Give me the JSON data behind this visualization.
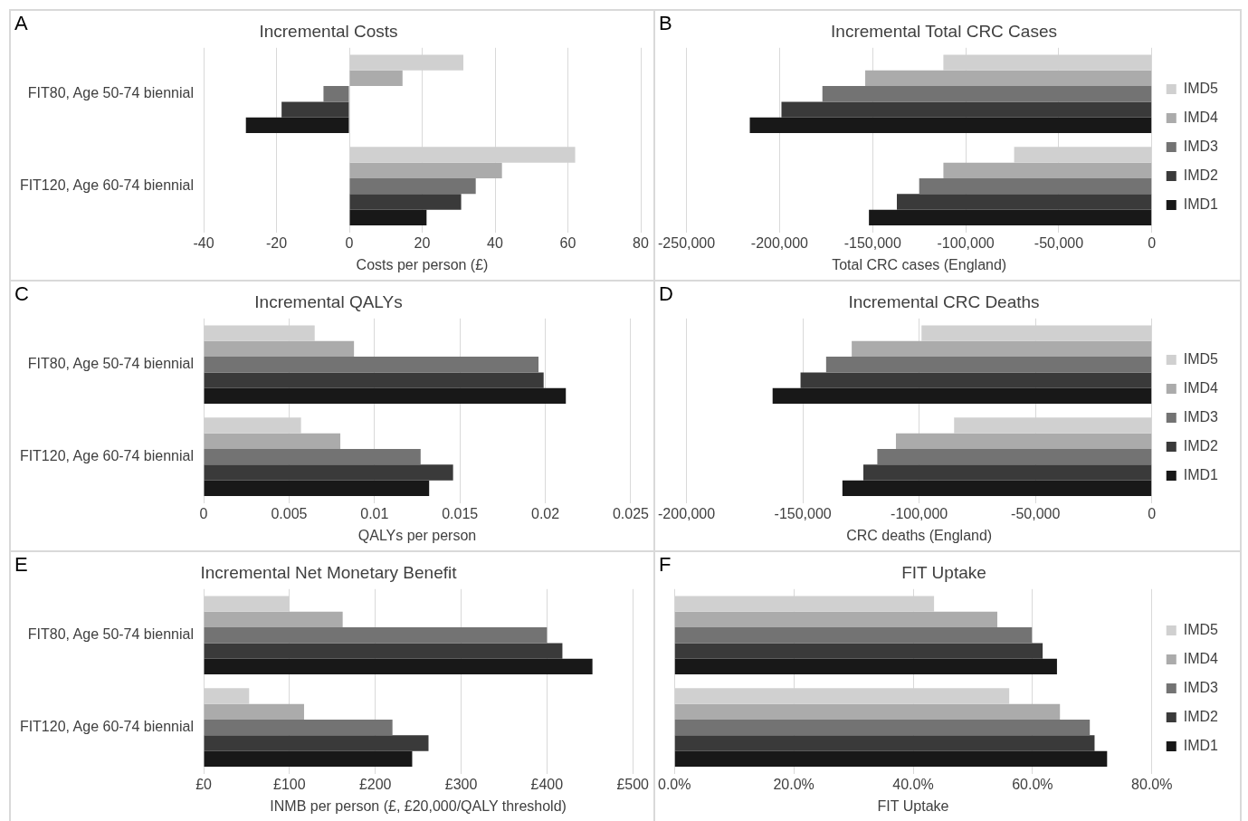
{
  "chart_data": [
    {
      "type": "bar",
      "orientation": "horizontal",
      "title": "Incremental Costs",
      "xlabel": "Costs per person (£)",
      "annotations": [
        "A"
      ],
      "categories": [
        "FIT80, Age 50-74 biennial",
        "FIT120, Age 60-74 biennial"
      ],
      "series": [
        {
          "color": "#d0d0d0",
          "values": [
            31.3,
            62
          ]
        },
        {
          "color": "#ababab",
          "values": [
            14.6,
            41.9
          ]
        },
        {
          "color": "#737373",
          "values": [
            -7.1,
            34.7
          ]
        },
        {
          "color": "#3a3a3a",
          "values": [
            -18.6,
            30.7
          ]
        },
        {
          "color": "#181818",
          "values": [
            -28.4,
            21.2
          ]
        }
      ],
      "xlim": [
        -40,
        80
      ],
      "xticks": [
        -40,
        -20,
        0,
        20,
        40,
        60,
        80
      ],
      "grid": "x"
    },
    {
      "type": "bar",
      "orientation": "horizontal",
      "title": "Incremental Total CRC Cases",
      "xlabel": "Total CRC cases (England)",
      "annotations": [
        "B"
      ],
      "categories": [
        null,
        null
      ],
      "series": [
        {
          "name": "IMD5",
          "color": "#d0d0d0",
          "values": [
            -112000,
            -74000
          ]
        },
        {
          "name": "IMD4",
          "color": "#ababab",
          "values": [
            -154000,
            -112000
          ]
        },
        {
          "name": "IMD3",
          "color": "#737373",
          "values": [
            -177000,
            -125000
          ]
        },
        {
          "name": "IMD2",
          "color": "#3a3a3a",
          "values": [
            -199000,
            -137000
          ]
        },
        {
          "name": "IMD1",
          "color": "#181818",
          "values": [
            -216000,
            -152000
          ]
        }
      ],
      "xlim": [
        -250000,
        0
      ],
      "xticks": [
        {
          "value": -250000,
          "label": "-250,000"
        },
        {
          "value": -200000,
          "label": "-200,000"
        },
        {
          "value": -150000,
          "label": "-150,000"
        },
        {
          "value": -100000,
          "label": "-100,000"
        },
        {
          "value": -50000,
          "label": "-50,000"
        },
        0
      ],
      "grid": "x",
      "legend": "right",
      "tick_labels": "x"
    },
    {
      "type": "bar",
      "orientation": "horizontal",
      "title": "Incremental QALYs",
      "xlabel": "QALYs per person",
      "annotations": [
        "C"
      ],
      "categories": [
        "FIT80, Age 50-74 biennial",
        "FIT120, Age 60-74 biennial"
      ],
      "series": [
        {
          "color": "#d0d0d0",
          "values": [
            0.0065,
            0.0057
          ]
        },
        {
          "color": "#ababab",
          "values": [
            0.0088,
            0.008
          ]
        },
        {
          "color": "#737373",
          "values": [
            0.0196,
            0.0127
          ]
        },
        {
          "color": "#3a3a3a",
          "values": [
            0.0199,
            0.0146
          ]
        },
        {
          "color": "#181818",
          "values": [
            0.0212,
            0.0132
          ]
        }
      ],
      "xlim": [
        0,
        0.025
      ],
      "xticks": [
        0,
        0.005,
        0.01,
        0.015,
        0.02,
        0.025
      ],
      "grid": "x"
    },
    {
      "type": "bar",
      "orientation": "horizontal",
      "title": "Incremental CRC Deaths",
      "xlabel": "CRC deaths (England)",
      "annotations": [
        "D"
      ],
      "categories": [
        null,
        null
      ],
      "series": [
        {
          "name": "IMD5",
          "color": "#d0d0d0",
          "values": [
            -99000,
            -85000
          ]
        },
        {
          "name": "IMD4",
          "color": "#ababab",
          "values": [
            -129000,
            -110000
          ]
        },
        {
          "name": "IMD3",
          "color": "#737373",
          "values": [
            -140000,
            -118000
          ]
        },
        {
          "name": "IMD2",
          "color": "#3a3a3a",
          "values": [
            -151000,
            -124000
          ]
        },
        {
          "name": "IMD1",
          "color": "#181818",
          "values": [
            -163000,
            -133000
          ]
        }
      ],
      "xlim": [
        -200000,
        0
      ],
      "xticks": [
        {
          "value": -200000,
          "label": "-200,000"
        },
        {
          "value": -150000,
          "label": "-150,000"
        },
        {
          "value": -100000,
          "label": "-100,000"
        },
        {
          "value": -50000,
          "label": "-50,000"
        },
        0
      ],
      "grid": "x",
      "legend": "right",
      "tick_labels": "x"
    },
    {
      "type": "bar",
      "orientation": "horizontal",
      "title": "Incremental Net Monetary Benefit",
      "xlabel": "INMB per person (£, £20,000/QALY threshold)",
      "annotations": [
        "E"
      ],
      "categories": [
        "FIT80, Age 50-74 biennial",
        "FIT120, Age 60-74 biennial"
      ],
      "series": [
        {
          "color": "#d0d0d0",
          "values": [
            100,
            53
          ]
        },
        {
          "color": "#ababab",
          "values": [
            162,
            117
          ]
        },
        {
          "color": "#737373",
          "values": [
            400,
            220
          ]
        },
        {
          "color": "#3a3a3a",
          "values": [
            418,
            262
          ]
        },
        {
          "color": "#181818",
          "values": [
            453,
            243
          ]
        }
      ],
      "xlim": [
        0,
        500
      ],
      "xticks": [
        {
          "value": 0,
          "label": "£0"
        },
        {
          "value": 100,
          "label": "£100"
        },
        {
          "value": 200,
          "label": "£200"
        },
        {
          "value": 300,
          "label": "£300"
        },
        {
          "value": 400,
          "label": "£400"
        },
        {
          "value": 500,
          "label": "£500"
        }
      ],
      "grid": "x"
    },
    {
      "type": "bar",
      "orientation": "horizontal",
      "title": "FIT Uptake",
      "xlabel": "FIT Uptake",
      "annotations": [
        "F"
      ],
      "categories": [
        null,
        null
      ],
      "series": [
        {
          "name": "IMD5",
          "color": "#d0d0d0",
          "values": [
            43.5,
            56.1
          ]
        },
        {
          "name": "IMD4",
          "color": "#ababab",
          "values": [
            54.1,
            64.6
          ]
        },
        {
          "name": "IMD3",
          "color": "#737373",
          "values": [
            59.9,
            69.6
          ]
        },
        {
          "name": "IMD2",
          "color": "#3a3a3a",
          "values": [
            61.7,
            70.4
          ]
        },
        {
          "name": "IMD1",
          "color": "#181818",
          "values": [
            64.1,
            72.5
          ]
        }
      ],
      "xlim": [
        0,
        80
      ],
      "xticks": [
        {
          "value": 0,
          "label": "0.0%"
        },
        {
          "value": 20,
          "label": "20.0%"
        },
        {
          "value": 40,
          "label": "40.0%"
        },
        {
          "value": 60,
          "label": "60.0%"
        },
        {
          "value": 80,
          "label": "80.0%"
        }
      ],
      "grid": "x",
      "legend": "right",
      "tick_labels": "x"
    }
  ]
}
